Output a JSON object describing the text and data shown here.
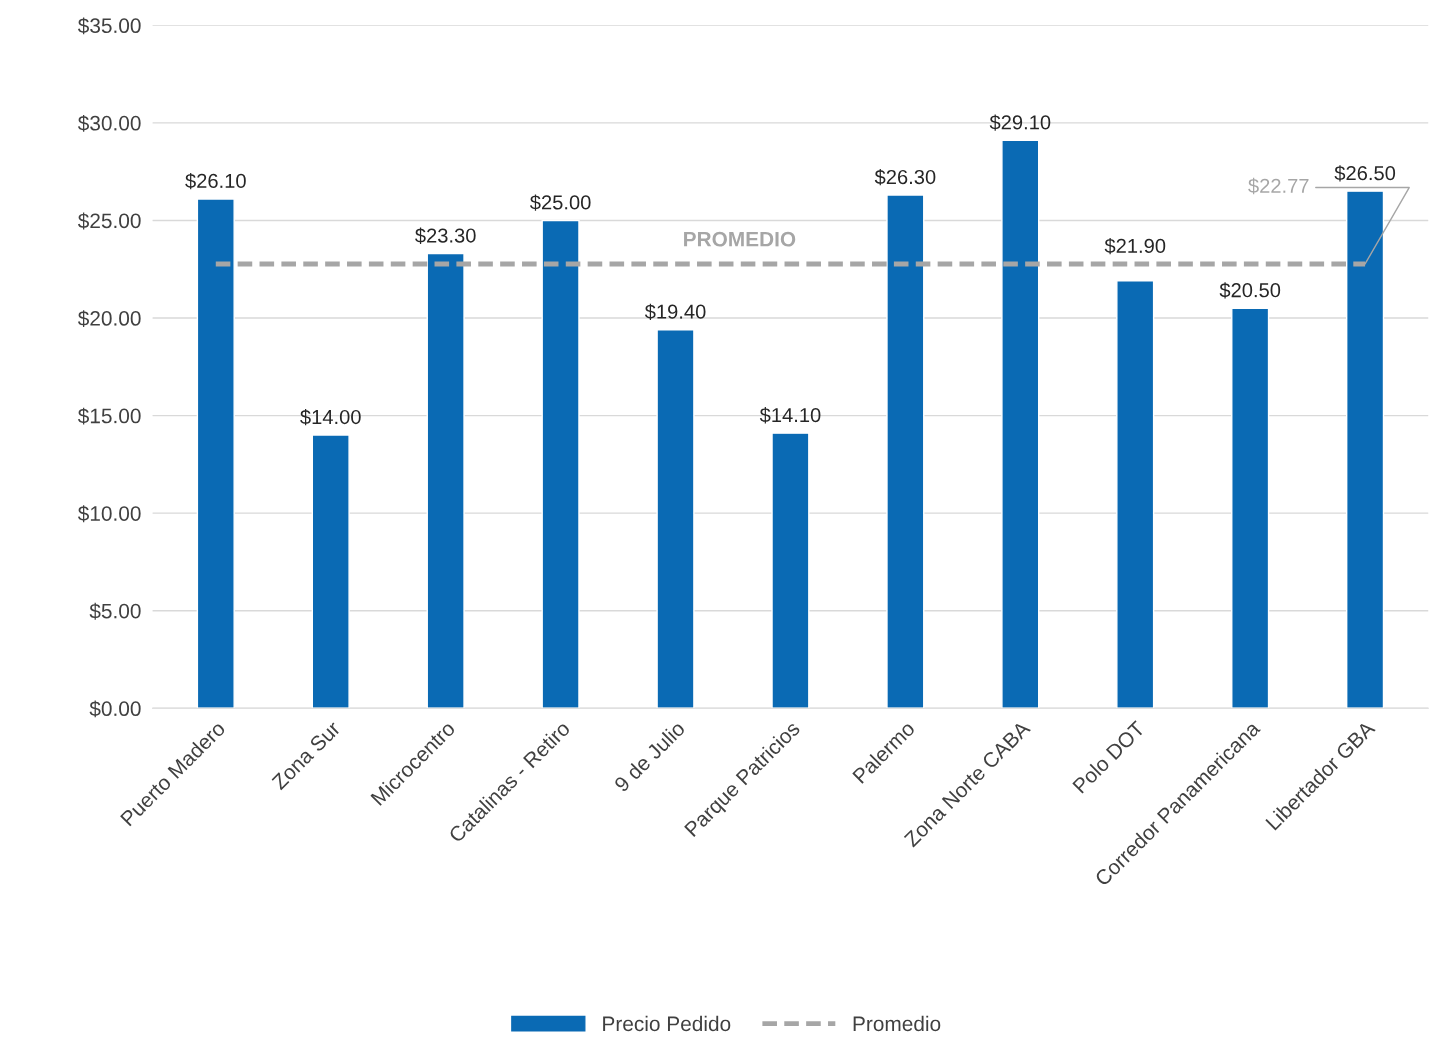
{
  "chart_data": {
    "type": "bar",
    "categories": [
      "Puerto Madero",
      "Zona Sur",
      "Microcentro",
      "Catalinas - Retiro",
      "9 de Julio",
      "Parque Patricios",
      "Palermo",
      "Zona Norte CABA",
      "Polo DOT",
      "Corredor Panamericana",
      "Libertador GBA"
    ],
    "series": [
      {
        "name": "Precio Pedido",
        "color": "#0a6ab4",
        "values": [
          26.1,
          14.0,
          23.3,
          25.0,
          19.4,
          14.1,
          26.3,
          29.1,
          21.9,
          20.5,
          26.5
        ],
        "value_labels": [
          "$26.10",
          "$14.00",
          "$23.30",
          "$25.00",
          "$19.40",
          "$14.10",
          "$26.30",
          "$29.10",
          "$21.90",
          "$20.50",
          "$26.50"
        ]
      },
      {
        "name": "Promedio",
        "type": "line",
        "color": "#a6a6a6",
        "line_style": "dashed",
        "marker": "none",
        "values": [
          22.77,
          22.77,
          22.77,
          22.77,
          22.77,
          22.77,
          22.77,
          22.77,
          22.77,
          22.77,
          22.77
        ],
        "value_labels": [
          null,
          null,
          null,
          null,
          null,
          null,
          null,
          null,
          null,
          null,
          "$22.77"
        ]
      }
    ],
    "annotations": [
      "PROMEDIO"
    ],
    "ylim": [
      0,
      35
    ],
    "yticks": [
      {
        "value": 0,
        "label": "$0.00"
      },
      {
        "value": 5,
        "label": "$5.00"
      },
      {
        "value": 10,
        "label": "$10.00"
      },
      {
        "value": 15,
        "label": "$15.00"
      },
      {
        "value": 20,
        "label": "$20.00"
      },
      {
        "value": 25,
        "label": "$25.00"
      },
      {
        "value": 30,
        "label": "$30.00"
      },
      {
        "value": 35,
        "label": "$35.00"
      }
    ],
    "grid": "y",
    "legend": "bottom"
  }
}
